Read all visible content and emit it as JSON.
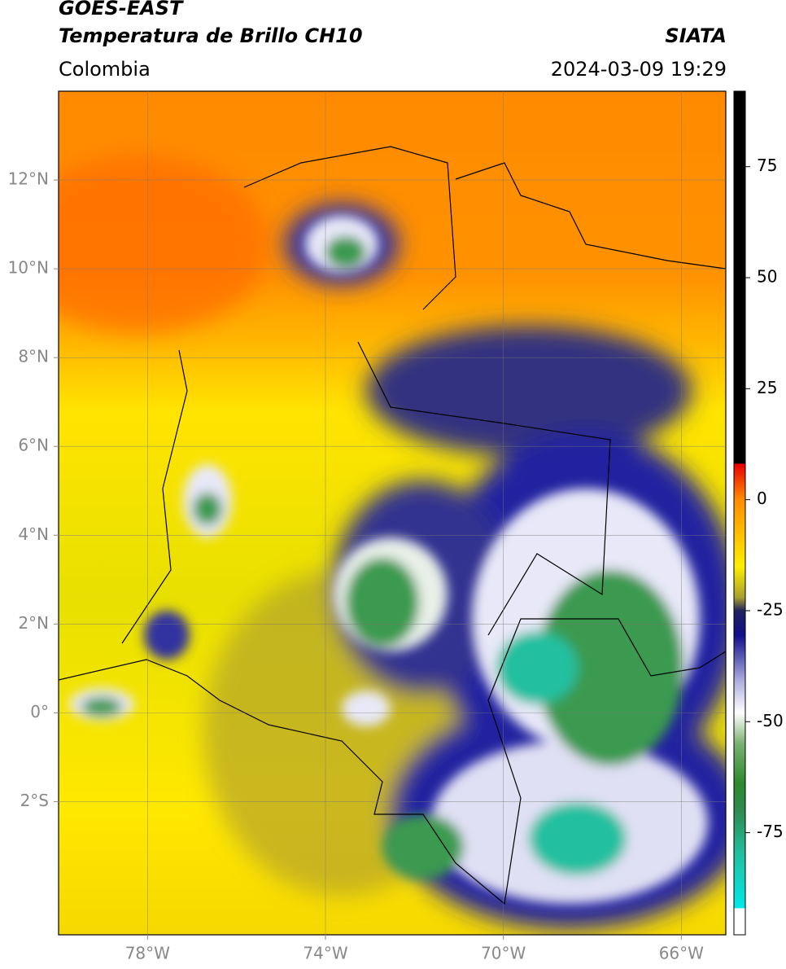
{
  "header": {
    "title": "GOES-EAST",
    "subtitle": "Temperatura de Brillo CH10",
    "source": "SIATA",
    "region": "Colombia",
    "datetime": "2024-03-09 19:29"
  },
  "map": {
    "xlim": [
      -80,
      -65
    ],
    "ylim": [
      -5,
      14
    ],
    "xticks": [
      {
        "value": -78,
        "label": "78°W"
      },
      {
        "value": -74,
        "label": "74°W"
      },
      {
        "value": -70,
        "label": "70°W"
      },
      {
        "value": -66,
        "label": "66°W"
      }
    ],
    "yticks": [
      {
        "value": 12,
        "label": "12°N"
      },
      {
        "value": 10,
        "label": "10°N"
      },
      {
        "value": 8,
        "label": "8°N"
      },
      {
        "value": 6,
        "label": "6°N"
      },
      {
        "value": 4,
        "label": "4°N"
      },
      {
        "value": 2,
        "label": "2°N"
      },
      {
        "value": 0,
        "label": "0°"
      },
      {
        "value": -2,
        "label": "2°S"
      }
    ],
    "grid": true
  },
  "colorbar": {
    "clim": [
      -98,
      92
    ],
    "ticks": [
      75,
      50,
      25,
      0,
      -25,
      -50,
      -75
    ]
  }
}
